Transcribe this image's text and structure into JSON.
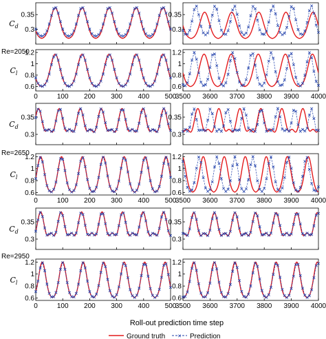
{
  "chart_data": {
    "type": "line",
    "xlabel": "Roll-out prediction time step",
    "legend": {
      "placement": "bottom-center",
      "ground_truth_label": "Ground truth",
      "prediction_label": "Prediction",
      "ground_truth_color": "#e31a1c",
      "prediction_color": "#1f3faa"
    },
    "reynolds_labels": [
      "Re=2050",
      "Re=2650",
      "Re=2950"
    ],
    "left_xticks": [
      "0",
      "100",
      "200",
      "300",
      "400",
      "500"
    ],
    "right_xticks": [
      "3500",
      "3600",
      "3700",
      "3800",
      "3900",
      "4000"
    ],
    "left_xlim": [
      0,
      500
    ],
    "right_xlim": [
      3500,
      4000
    ],
    "panels": [
      {
        "group": 0,
        "variable": "C_d",
        "ylabel_main": "C",
        "ylabel_sub": "d",
        "ylim": [
          0.25,
          0.39
        ],
        "yticks": [
          "0.3",
          "0.35"
        ],
        "ytick_values": [
          0.3,
          0.35
        ],
        "show_xticks": false,
        "left": {
          "gt": {
            "period": 100,
            "phase": 72,
            "base": 0.268,
            "amp1": 0.105,
            "amp2": 0.0,
            "shift2": 0
          },
          "pred": {
            "period": 100,
            "phase": 72,
            "base": 0.275,
            "amp1": 0.1,
            "amp2": 0.0,
            "shift2": 0
          }
        },
        "right": {
          "gt": {
            "period": 100,
            "phase": 3580,
            "base": 0.268,
            "amp1": 0.09,
            "amp2": 0.0,
            "shift2": 0
          },
          "pred": {
            "period": 71,
            "phase": 3548,
            "base": 0.28,
            "amp1": 0.1,
            "amp2": 0.0,
            "shift2": 0
          }
        }
      },
      {
        "group": 0,
        "variable": "C_l",
        "ylabel_main": "C",
        "ylabel_sub": "l",
        "ylim": [
          0.52,
          1.25
        ],
        "yticks": [
          "0.6",
          "0.8",
          "1",
          "1.2"
        ],
        "ytick_values": [
          0.6,
          0.8,
          1.0,
          1.2
        ],
        "show_xticks": true,
        "left": {
          "gt": {
            "period": 100,
            "phase": 72,
            "base": 0.59,
            "amp1": 0.58,
            "amp2": 0.0,
            "shift2": 0
          },
          "pred": {
            "period": 100,
            "phase": 73,
            "base": 0.59,
            "amp1": 0.57,
            "amp2": 0.0,
            "shift2": 0
          }
        },
        "right": {
          "gt": {
            "period": 100,
            "phase": 3578,
            "base": 0.59,
            "amp1": 0.58,
            "amp2": 0.0,
            "shift2": 0
          },
          "pred": {
            "period": 71,
            "phase": 3542,
            "base": 0.6,
            "amp1": 0.6,
            "amp2": 0.0,
            "shift2": 0
          }
        }
      },
      {
        "group": 1,
        "variable": "C_d",
        "ylabel_main": "C",
        "ylabel_sub": "d",
        "ylim": [
          0.27,
          0.39
        ],
        "yticks": [
          "0.3",
          "0.35"
        ],
        "ytick_values": [
          0.3,
          0.35
        ],
        "show_xticks": false,
        "left": {
          "gt": {
            "period": 77.5,
            "phase": 10,
            "base": 0.283,
            "amp1": 0.092,
            "amp2": 0.03,
            "shift2": 38
          },
          "pred": {
            "period": 77.5,
            "phase": 11,
            "base": 0.285,
            "amp1": 0.09,
            "amp2": 0.028,
            "shift2": 38
          }
        },
        "right": {
          "gt": {
            "period": 77.5,
            "phase": 3555,
            "base": 0.283,
            "amp1": 0.092,
            "amp2": 0.03,
            "shift2": 38
          },
          "pred": {
            "period": 62,
            "phase": 3540,
            "base": 0.285,
            "amp1": 0.09,
            "amp2": 0.028,
            "shift2": 31
          }
        }
      },
      {
        "group": 1,
        "variable": "C_l",
        "ylabel_main": "C",
        "ylabel_sub": "l",
        "ylim": [
          0.56,
          1.25
        ],
        "yticks": [
          "0.6",
          "0.8",
          "1",
          "1.2"
        ],
        "ytick_values": [
          0.6,
          0.8,
          1.0,
          1.2
        ],
        "show_xticks": true,
        "left": {
          "gt": {
            "period": 77.5,
            "phase": 18,
            "base": 0.6,
            "amp1": 0.6,
            "amp2": 0.0,
            "shift2": 0
          },
          "pred": {
            "period": 77.5,
            "phase": 18,
            "base": 0.6,
            "amp1": 0.59,
            "amp2": 0.0,
            "shift2": 0
          }
        },
        "right": {
          "gt": {
            "period": 77.5,
            "phase": 3575,
            "base": 0.6,
            "amp1": 0.6,
            "amp2": 0.0,
            "shift2": 0
          },
          "pred": {
            "period": 66,
            "phase": 3560,
            "base": 0.61,
            "amp1": 0.59,
            "amp2": 0.0,
            "shift2": 0
          }
        }
      },
      {
        "group": 2,
        "variable": "C_d",
        "ylabel_main": "C",
        "ylabel_sub": "d",
        "ylim": [
          0.27,
          0.39
        ],
        "yticks": [
          "0.3",
          "0.35"
        ],
        "ytick_values": [
          0.3,
          0.35
        ],
        "show_xticks": false,
        "left": {
          "gt": {
            "period": 76,
            "phase": 18,
            "base": 0.284,
            "amp1": 0.095,
            "amp2": 0.032,
            "shift2": 38
          },
          "pred": {
            "period": 76,
            "phase": 18,
            "base": 0.285,
            "amp1": 0.093,
            "amp2": 0.031,
            "shift2": 38
          }
        },
        "right": {
          "gt": {
            "period": 76,
            "phase": 3540,
            "base": 0.284,
            "amp1": 0.093,
            "amp2": 0.032,
            "shift2": 38
          },
          "pred": {
            "period": 76,
            "phase": 3541,
            "base": 0.285,
            "amp1": 0.092,
            "amp2": 0.031,
            "shift2": 38
          }
        }
      },
      {
        "group": 2,
        "variable": "C_l",
        "ylabel_main": "C",
        "ylabel_sub": "l",
        "ylim": [
          0.56,
          1.25
        ],
        "yticks": [
          "0.6",
          "0.8",
          "1",
          "1.2"
        ],
        "ytick_values": [
          0.6,
          0.8,
          1.0,
          1.2
        ],
        "show_xticks": true,
        "left": {
          "gt": {
            "period": 76,
            "phase": 24,
            "base": 0.6,
            "amp1": 0.6,
            "amp2": 0.0,
            "shift2": 0
          },
          "pred": {
            "period": 76,
            "phase": 24,
            "base": 0.6,
            "amp1": 0.59,
            "amp2": 0.0,
            "shift2": 0
          }
        },
        "right": {
          "gt": {
            "period": 76,
            "phase": 3540,
            "base": 0.6,
            "amp1": 0.6,
            "amp2": 0.0,
            "shift2": 0
          },
          "pred": {
            "period": 76,
            "phase": 3541,
            "base": 0.6,
            "amp1": 0.59,
            "amp2": 0.0,
            "shift2": 0
          }
        }
      }
    ]
  }
}
